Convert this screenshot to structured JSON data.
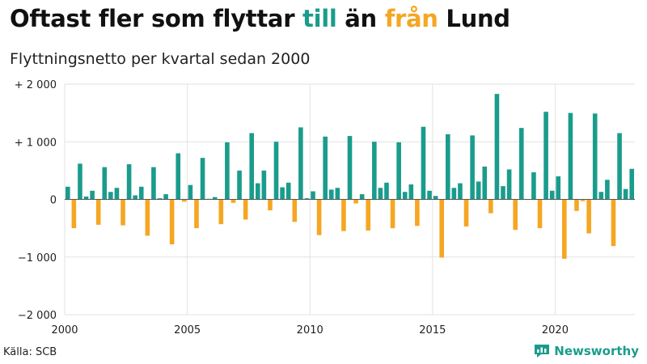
{
  "title": {
    "part1": "Oftast fler som flyttar ",
    "part2": "till",
    "part3": " än ",
    "part4": "från",
    "part5": " Lund"
  },
  "subtitle": "Flyttningsnetto per kvartal sedan 2000",
  "source": "Källa: SCB",
  "brand": "Newsworthy",
  "brand_icon": "bar-chart-logo-icon",
  "colors": {
    "positive": "#1a9c8c",
    "negative": "#f5a623",
    "grid": "#e2e2e2",
    "text": "#111111"
  },
  "chart_data": {
    "type": "bar",
    "title": "Oftast fler som flyttar till än från Lund",
    "subtitle": "Flyttningsnetto per kvartal sedan 2000",
    "x_start": 2000,
    "period": "quarter",
    "ylim": [
      -2000,
      2000
    ],
    "y_ticks": [
      {
        "value": 2000,
        "label": "+ 2 000"
      },
      {
        "value": 1000,
        "label": "+ 1 000"
      },
      {
        "value": 0,
        "label": "0"
      },
      {
        "value": -1000,
        "label": "−1 000"
      },
      {
        "value": -2000,
        "label": "−2 000"
      }
    ],
    "x_ticks": [
      {
        "year": 2000,
        "label": "2000"
      },
      {
        "year": 2005,
        "label": "2005"
      },
      {
        "year": 2010,
        "label": "2010"
      },
      {
        "year": 2015,
        "label": "2015"
      },
      {
        "year": 2020,
        "label": "2020"
      }
    ],
    "grid": true,
    "values": [
      220,
      -500,
      620,
      50,
      150,
      -440,
      560,
      130,
      200,
      -450,
      610,
      70,
      220,
      -630,
      560,
      20,
      90,
      -780,
      800,
      -40,
      250,
      -500,
      720,
      10,
      40,
      -430,
      990,
      -60,
      500,
      -350,
      1150,
      280,
      500,
      -190,
      1000,
      210,
      290,
      -390,
      1250,
      20,
      140,
      -620,
      1090,
      170,
      200,
      -550,
      1100,
      -70,
      90,
      -540,
      1000,
      200,
      290,
      -500,
      990,
      130,
      260,
      -460,
      1260,
      150,
      60,
      -1010,
      1130,
      200,
      280,
      -470,
      1110,
      310,
      570,
      -240,
      1830,
      230,
      520,
      -530,
      1240,
      -10,
      470,
      -500,
      1520,
      150,
      400,
      -1030,
      1500,
      -200,
      -30,
      -590,
      1490,
      130,
      340,
      -810,
      1150,
      180,
      530
    ]
  }
}
